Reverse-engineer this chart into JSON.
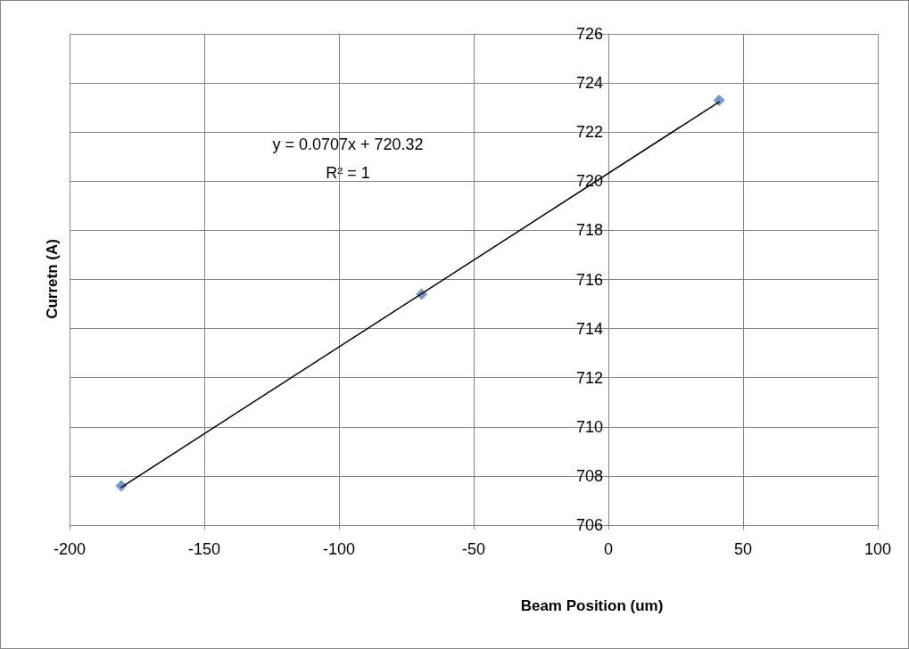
{
  "chart_data": {
    "type": "scatter",
    "xlabel": "Beam Position (um)",
    "ylabel": "Curretn (A)",
    "annotations": [
      "y = 0.0707x + 720.32",
      "R² = 1"
    ],
    "xlim": [
      -200,
      100
    ],
    "xticks": [
      -200,
      -150,
      -100,
      -50,
      0,
      50,
      100
    ],
    "ylim": [
      706,
      726
    ],
    "yticks": [
      706,
      708,
      710,
      712,
      714,
      716,
      718,
      720,
      722,
      724,
      726
    ],
    "grid": true,
    "marker": "diamond",
    "series": [
      {
        "color": "#4f81bd",
        "x": [
          -180.8,
          -69.3,
          41.1
        ],
        "values": [
          707.6,
          715.4,
          723.3
        ]
      },
      {
        "type": "line",
        "marker": "none",
        "color": "#000000",
        "x": [
          -180.8,
          41.1
        ],
        "values": [
          707.54,
          723.23
        ]
      }
    ]
  }
}
